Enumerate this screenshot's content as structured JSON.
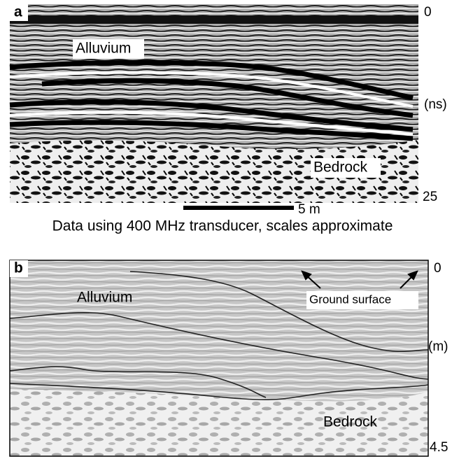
{
  "panel_a": {
    "label": "a",
    "unit_label": "(ns)",
    "axis_top": 0,
    "axis_bottom": 25,
    "upper_unit": "Alluvium",
    "lower_unit": "Bedrock",
    "scale_bar": "5 m",
    "caption": "Data using 400 MHz transducer, scales approximate"
  },
  "panel_b": {
    "label": "b",
    "unit_label": "(m)",
    "axis_top": 0,
    "axis_bottom": 4.5,
    "upper_unit": "Alluvium",
    "lower_unit": "Bedrock",
    "annotation": "Ground surface"
  }
}
